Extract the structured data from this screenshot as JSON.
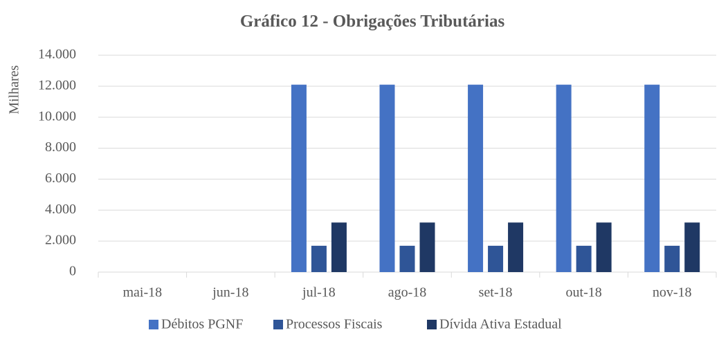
{
  "chart_data": {
    "type": "bar",
    "title": "Gráfico 12 - Obrigações Tributárias",
    "y_label": "Milhares",
    "categories": [
      "mai-18",
      "jun-18",
      "jul-18",
      "ago-18",
      "set-18",
      "out-18",
      "nov-18"
    ],
    "series": [
      {
        "name": "Débitos PGNF",
        "color": "#4472c4",
        "values": [
          0,
          0,
          12100,
          12100,
          12100,
          12100,
          12100
        ]
      },
      {
        "name": "Processos Fiscais",
        "color": "#2f5597",
        "values": [
          0,
          0,
          1700,
          1700,
          1700,
          1700,
          1700
        ]
      },
      {
        "name": "Dívida Ativa Estadual",
        "color": "#1f3864",
        "values": [
          0,
          0,
          3200,
          3200,
          3200,
          3200,
          3200
        ]
      }
    ],
    "ylim": [
      0,
      14000
    ],
    "yticks": [
      0,
      {
        "value": 2000,
        "label": "2.000"
      },
      {
        "value": 4000,
        "label": "4.000"
      },
      {
        "value": 6000,
        "label": "6.000"
      },
      {
        "value": 8000,
        "label": "8.000"
      },
      {
        "value": 10000,
        "label": "10.000"
      },
      {
        "value": 12000,
        "label": "12.000"
      },
      {
        "value": 14000,
        "label": "14.000"
      }
    ],
    "grid": true,
    "legend": "bottom"
  }
}
